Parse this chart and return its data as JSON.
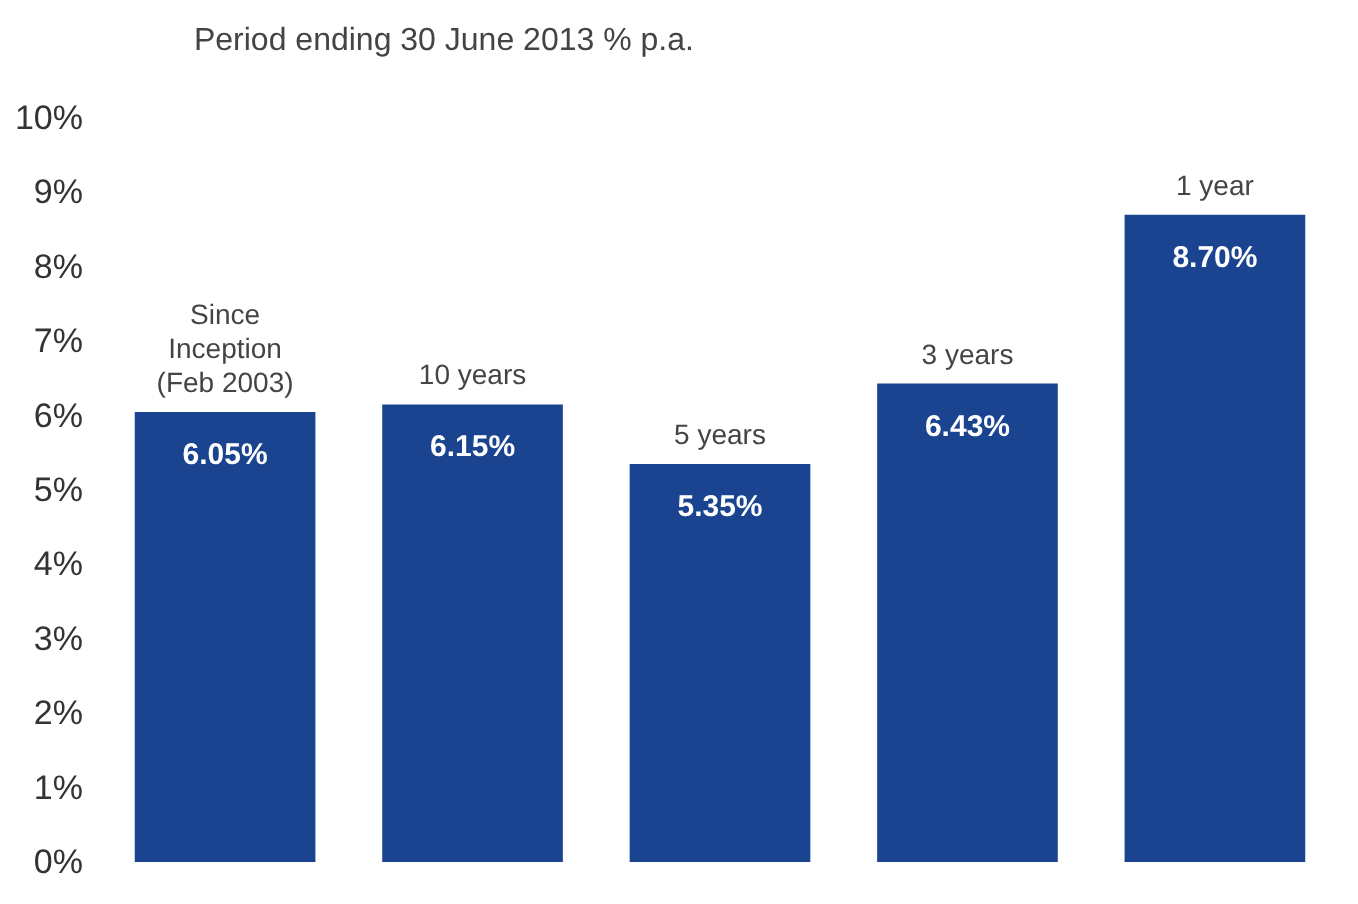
{
  "chart_data": {
    "type": "bar",
    "title": "Period ending 30 June 2013 % p.a.",
    "categories": [
      "Since Inception (Feb 2003)",
      "10 years",
      "5 years",
      "3 years",
      "1 year"
    ],
    "values": [
      6.05,
      6.15,
      5.35,
      6.43,
      8.7
    ],
    "value_labels": [
      "6.05%",
      "6.15%",
      "5.35%",
      "6.43%",
      "8.70%"
    ],
    "color": "#1a4490",
    "ylim": [
      0,
      10
    ],
    "yticks": [
      {
        "value": 0,
        "label": "0%"
      },
      {
        "value": 1,
        "label": "1%"
      },
      {
        "value": 2,
        "label": "2%"
      },
      {
        "value": 3,
        "label": "3%"
      },
      {
        "value": 4,
        "label": "4%"
      },
      {
        "value": 5,
        "label": "5%"
      },
      {
        "value": 6,
        "label": "6%"
      },
      {
        "value": 7,
        "label": "7%"
      },
      {
        "value": 8,
        "label": "8%"
      },
      {
        "value": 9,
        "label": "9%"
      },
      {
        "value": 10,
        "label": "10%"
      }
    ],
    "grid": false
  }
}
